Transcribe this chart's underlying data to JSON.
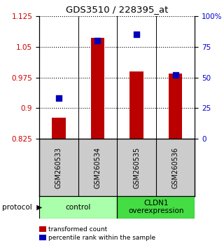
{
  "title": "GDS3510 / 228395_at",
  "samples": [
    "GSM260533",
    "GSM260534",
    "GSM260535",
    "GSM260536"
  ],
  "transformed_counts": [
    0.876,
    1.072,
    0.99,
    0.984
  ],
  "percentile_ranks": [
    33,
    80,
    85,
    52
  ],
  "ylim_left": [
    0.825,
    1.125
  ],
  "ylim_right": [
    0,
    100
  ],
  "yticks_left": [
    0.825,
    0.9,
    0.975,
    1.05,
    1.125
  ],
  "yticks_right": [
    0,
    25,
    50,
    75,
    100
  ],
  "yticklabels_right": [
    "0",
    "25",
    "50",
    "75",
    "100%"
  ],
  "groups": [
    {
      "label": "control",
      "samples": [
        0,
        1
      ],
      "color": "#aaffaa"
    },
    {
      "label": "CLDN1\noverexpression",
      "samples": [
        2,
        3
      ],
      "color": "#44dd44"
    }
  ],
  "bar_color": "#bb0000",
  "dot_color": "#0000bb",
  "bar_width": 0.35,
  "dot_size": 30,
  "background_color": "#ffffff",
  "plot_bg_color": "#ffffff",
  "tick_label_color_left": "#cc0000",
  "tick_label_color_right": "#0000cc",
  "grid_color": "#000000",
  "sample_box_color": "#cccccc",
  "legend_items": [
    {
      "color": "#bb0000",
      "label": "transformed count"
    },
    {
      "color": "#0000bb",
      "label": "percentile rank within the sample"
    }
  ]
}
